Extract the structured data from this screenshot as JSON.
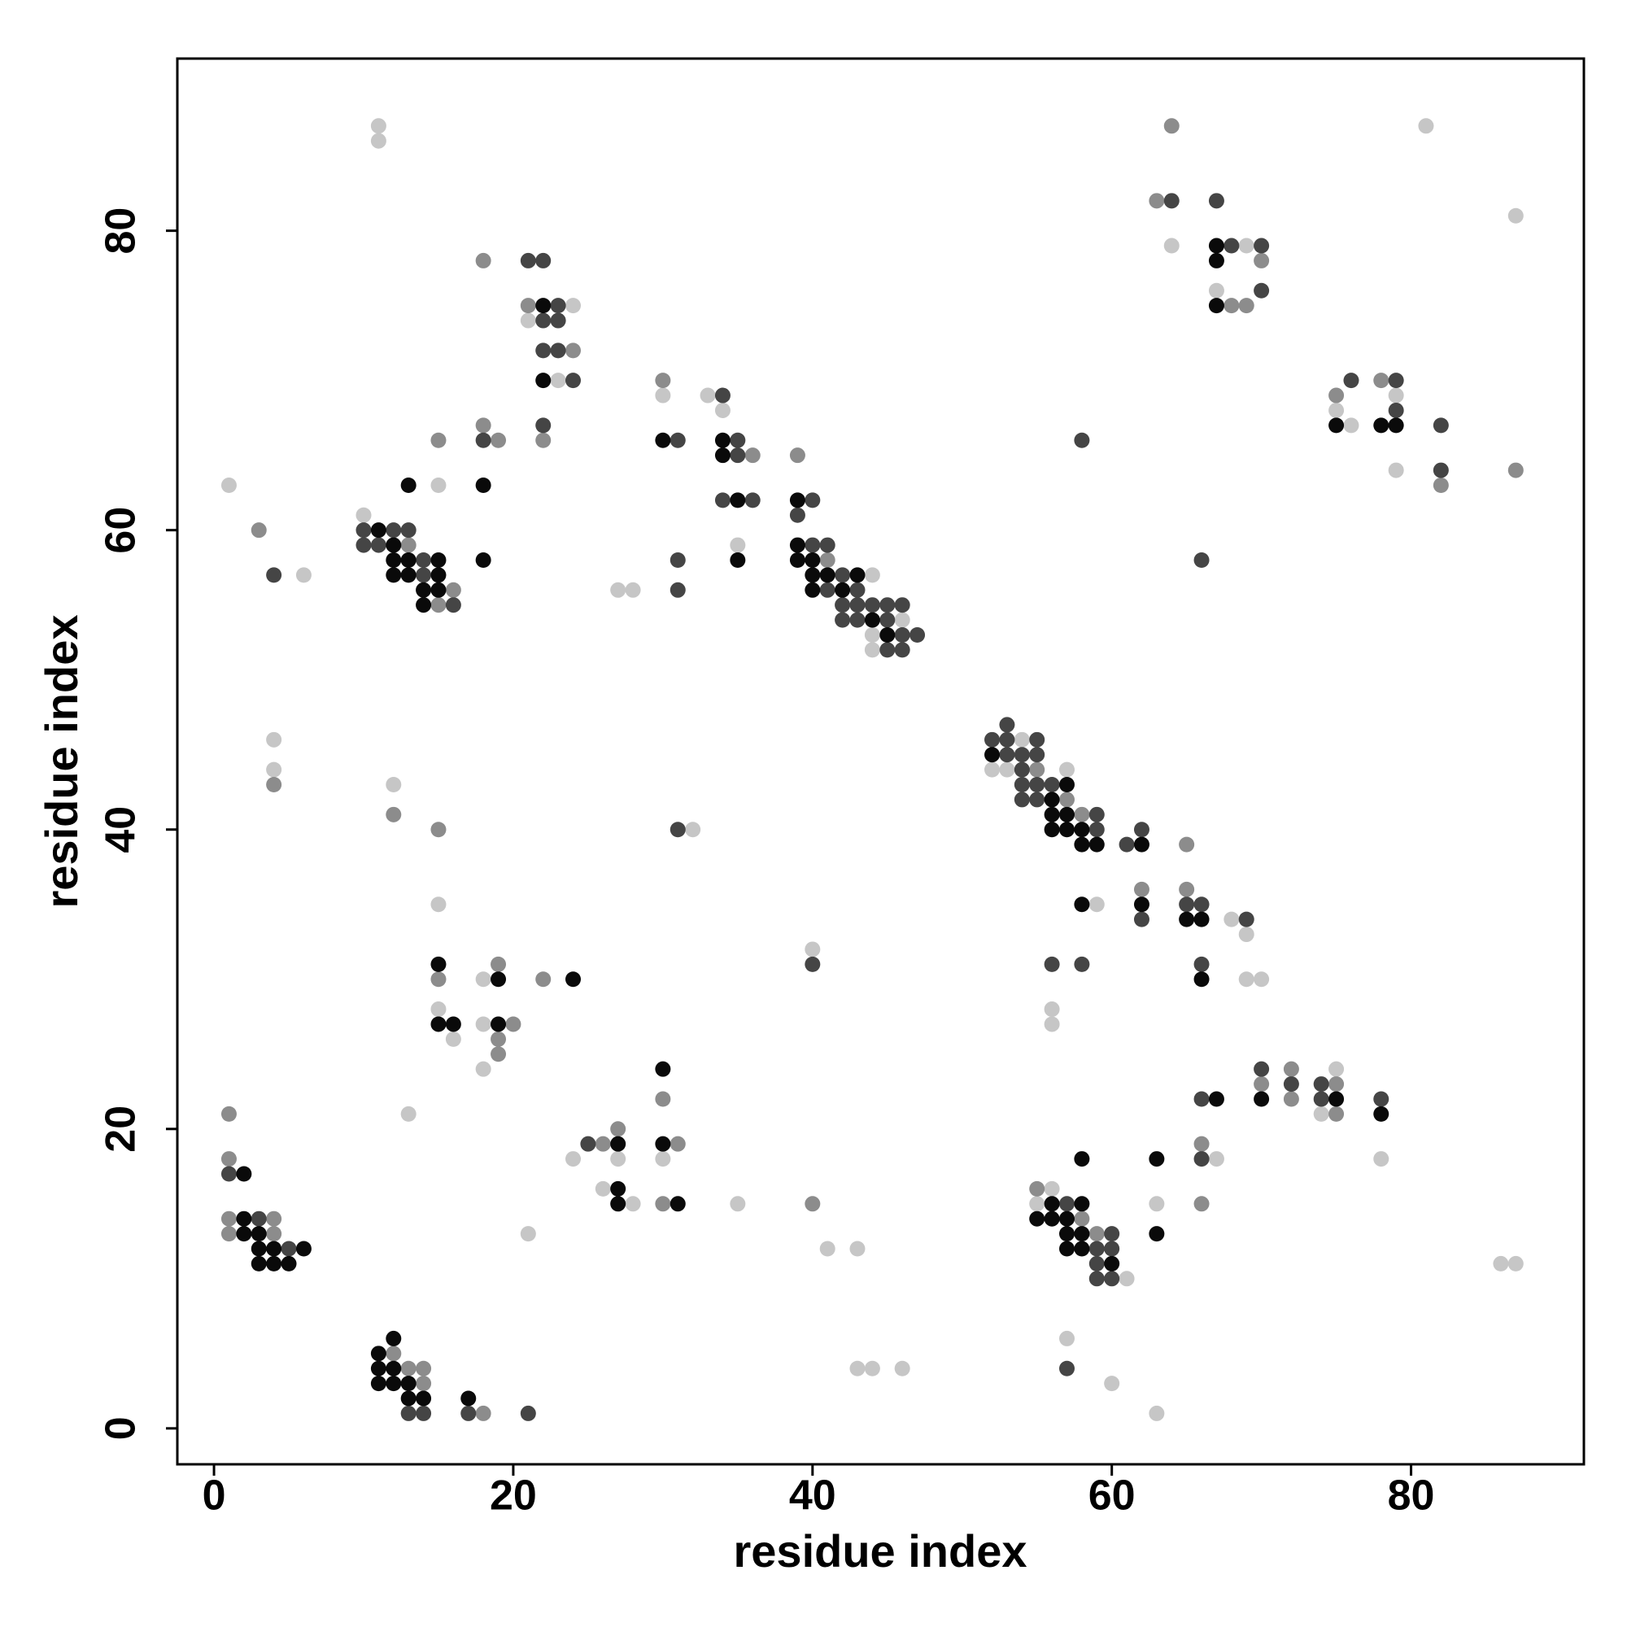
{
  "chart_data": {
    "type": "scatter",
    "xlabel": "residue index",
    "ylabel": "residue index",
    "xlim": [
      -2.45,
      91.55
    ],
    "ylim": [
      -2.4,
      91.5
    ],
    "xticks": [
      0,
      20,
      40,
      60,
      80
    ],
    "yticks": [
      0,
      20,
      40,
      60,
      80
    ],
    "series": [
      {
        "color": "#c6c6c6",
        "x": [
          11,
          11,
          24,
          21,
          23,
          15,
          1,
          10,
          6,
          30,
          33,
          34,
          35,
          27,
          28,
          44,
          46,
          44,
          44,
          81,
          87,
          64,
          69,
          67,
          75,
          79,
          76,
          79,
          4,
          4,
          12,
          32,
          15,
          18,
          15,
          16,
          18,
          18,
          13,
          40,
          54,
          52,
          53,
          57,
          59,
          68,
          69,
          69,
          70,
          56,
          56,
          21,
          24,
          27,
          26,
          28,
          30,
          35,
          41,
          43,
          43,
          44,
          46,
          56,
          55,
          61,
          57,
          60,
          63,
          63,
          67,
          75,
          74,
          78,
          86,
          87
        ],
        "y": [
          87,
          86,
          75,
          74,
          70,
          63,
          63,
          61,
          57,
          69,
          69,
          68,
          59,
          56,
          56,
          57,
          54,
          53,
          52,
          87,
          81,
          79,
          79,
          76,
          68,
          69,
          67,
          64,
          46,
          44,
          43,
          40,
          35,
          30,
          28,
          26,
          27,
          24,
          21,
          32,
          46,
          44,
          44,
          44,
          35,
          34,
          33,
          30,
          30,
          28,
          27,
          13,
          18,
          18,
          16,
          15,
          18,
          15,
          12,
          12,
          4,
          4,
          4,
          16,
          15,
          10,
          6,
          3,
          1,
          15,
          18,
          24,
          21,
          18,
          11,
          11
        ]
      },
      {
        "color": "#8c8c8c",
        "x": [
          18,
          21,
          24,
          22,
          18,
          19,
          15,
          3,
          13,
          16,
          15,
          30,
          36,
          39,
          41,
          64,
          63,
          70,
          68,
          69,
          75,
          78,
          82,
          87,
          4,
          12,
          15,
          15,
          19,
          22,
          20,
          19,
          19,
          55,
          57,
          58,
          65,
          62,
          65,
          1,
          1,
          1,
          4,
          1,
          4,
          12,
          13,
          14,
          14,
          18,
          26,
          27,
          30,
          31,
          30,
          40,
          55,
          58,
          59,
          66,
          66,
          70,
          72,
          72,
          75,
          75
        ],
        "y": [
          78,
          75,
          72,
          66,
          67,
          66,
          66,
          60,
          59,
          56,
          55,
          70,
          65,
          65,
          58,
          87,
          82,
          78,
          75,
          75,
          69,
          70,
          63,
          64,
          43,
          41,
          40,
          30,
          31,
          30,
          27,
          26,
          25,
          44,
          42,
          41,
          39,
          36,
          36,
          21,
          18,
          14,
          14,
          13,
          13,
          5,
          4,
          4,
          3,
          1,
          19,
          20,
          22,
          19,
          15,
          15,
          16,
          14,
          13,
          19,
          15,
          23,
          24,
          22,
          23,
          21
        ]
      },
      {
        "color": "#454545",
        "x": [
          21,
          22,
          23,
          22,
          23,
          22,
          23,
          24,
          22,
          18,
          10,
          12,
          13,
          10,
          11,
          14,
          14,
          16,
          4,
          34,
          31,
          35,
          35,
          34,
          36,
          31,
          31,
          40,
          39,
          40,
          41,
          42,
          41,
          43,
          42,
          43,
          44,
          45,
          46,
          42,
          43,
          45,
          46,
          47,
          45,
          46,
          58,
          66,
          64,
          67,
          68,
          70,
          70,
          76,
          79,
          79,
          82,
          82,
          31,
          40,
          53,
          52,
          53,
          55,
          53,
          54,
          55,
          54,
          54,
          55,
          56,
          54,
          55,
          59,
          59,
          61,
          62,
          65,
          66,
          62,
          69,
          56,
          58,
          66,
          1,
          3,
          5,
          13,
          14,
          17,
          21,
          25,
          57,
          59,
          60,
          60,
          59,
          59,
          60,
          57,
          66,
          66,
          70,
          72,
          74,
          74,
          78
        ],
        "y": [
          78,
          78,
          75,
          74,
          74,
          72,
          72,
          70,
          67,
          66,
          60,
          60,
          60,
          59,
          59,
          58,
          57,
          55,
          57,
          69,
          66,
          66,
          65,
          62,
          62,
          58,
          56,
          62,
          61,
          59,
          59,
          57,
          56,
          56,
          55,
          55,
          55,
          55,
          55,
          54,
          54,
          54,
          53,
          53,
          52,
          52,
          66,
          58,
          82,
          82,
          79,
          79,
          76,
          70,
          70,
          68,
          67,
          64,
          40,
          31,
          47,
          46,
          46,
          46,
          45,
          45,
          45,
          44,
          43,
          43,
          43,
          42,
          42,
          41,
          40,
          39,
          40,
          35,
          35,
          34,
          34,
          31,
          31,
          31,
          17,
          14,
          12,
          1,
          1,
          1,
          1,
          19,
          15,
          12,
          12,
          13,
          11,
          10,
          10,
          4,
          22,
          18,
          24,
          23,
          23,
          22,
          22
        ]
      },
      {
        "color": "#0a0a0a",
        "x": [
          22,
          22,
          18,
          13,
          11,
          12,
          12,
          13,
          15,
          12,
          13,
          15,
          14,
          15,
          14,
          18,
          30,
          34,
          34,
          35,
          35,
          39,
          39,
          39,
          40,
          40,
          41,
          43,
          40,
          42,
          44,
          45,
          67,
          67,
          67,
          75,
          78,
          79,
          15,
          19,
          24,
          15,
          16,
          19,
          52,
          57,
          56,
          56,
          57,
          56,
          57,
          58,
          58,
          59,
          62,
          58,
          62,
          65,
          66,
          66,
          2,
          2,
          2,
          3,
          3,
          4,
          6,
          3,
          4,
          5,
          11,
          12,
          11,
          12,
          11,
          12,
          13,
          13,
          14,
          17,
          27,
          27,
          27,
          30,
          30,
          31,
          56,
          58,
          55,
          56,
          57,
          57,
          58,
          57,
          58,
          60,
          58,
          63,
          63,
          67,
          70,
          75,
          78
        ],
        "y": [
          75,
          70,
          63,
          63,
          60,
          59,
          58,
          58,
          58,
          57,
          57,
          57,
          56,
          56,
          55,
          58,
          66,
          66,
          65,
          62,
          58,
          62,
          59,
          58,
          58,
          57,
          57,
          57,
          56,
          56,
          54,
          53,
          79,
          78,
          75,
          67,
          67,
          67,
          31,
          30,
          30,
          27,
          27,
          27,
          45,
          43,
          42,
          41,
          41,
          40,
          40,
          40,
          39,
          39,
          39,
          35,
          35,
          34,
          34,
          30,
          17,
          14,
          13,
          13,
          12,
          12,
          12,
          11,
          11,
          11,
          5,
          6,
          4,
          4,
          3,
          3,
          3,
          2,
          2,
          2,
          19,
          16,
          15,
          24,
          19,
          15,
          15,
          15,
          14,
          14,
          14,
          13,
          13,
          12,
          12,
          11,
          18,
          18,
          13,
          22,
          22,
          22,
          21
        ]
      }
    ]
  }
}
